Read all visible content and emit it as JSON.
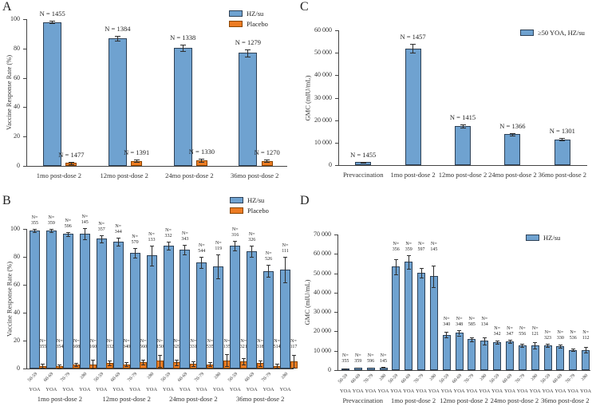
{
  "figure_bg": "#ffffff",
  "colors": {
    "hzsu": "#6FA2D0",
    "hzsu_border": "#2E4156",
    "placebo": "#EC7C23",
    "placebo_border": "#8A4500",
    "error_bar": "#2f2f2f",
    "text": "#1c1c1c"
  },
  "chart_data": [
    {
      "panel": "A",
      "type": "bar",
      "kind": "pairs",
      "ylabel": "Vaccine Response Rate (%)",
      "ylim": [
        0,
        100
      ],
      "ytick_labels": [
        "0",
        "20",
        "40",
        "60",
        "80",
        "100"
      ],
      "legend": [
        {
          "label": "HZ/su",
          "series": "hzsu"
        },
        {
          "label": "Placebo",
          "series": "placebo"
        }
      ],
      "groups": [
        {
          "label": "1mo post-dose 2",
          "bars": [
            {
              "series": "hzsu",
              "value": 98,
              "err": 0.8,
              "n": "N = 1455"
            },
            {
              "series": "placebo",
              "value": 2,
              "err": 0.8,
              "n": "N = 1477"
            }
          ]
        },
        {
          "label": "12mo post-dose 2",
          "bars": [
            {
              "series": "hzsu",
              "value": 87,
              "err": 1.5,
              "n": "N = 1384"
            },
            {
              "series": "placebo",
              "value": 3.5,
              "err": 1.0,
              "n": "N = 1391"
            }
          ]
        },
        {
          "label": "24mo post-dose 2",
          "bars": [
            {
              "series": "hzsu",
              "value": 80.5,
              "err": 2.0,
              "n": "N = 1338"
            },
            {
              "series": "placebo",
              "value": 4,
              "err": 1.1,
              "n": "N = 1330"
            }
          ]
        },
        {
          "label": "36mo post-dose 2",
          "bars": [
            {
              "series": "hzsu",
              "value": 77,
              "err": 2.3,
              "n": "N = 1279"
            },
            {
              "series": "placebo",
              "value": 3.5,
              "err": 1.0,
              "n": "N = 1270"
            }
          ]
        }
      ]
    },
    {
      "panel": "B",
      "type": "bar",
      "kind": "bins2",
      "ylabel": "Vaccine Response Rate (%)",
      "ylim": [
        0,
        100
      ],
      "ytick_labels": [
        "0",
        "20",
        "40",
        "60",
        "80",
        "100"
      ],
      "yoa_label": "YOA",
      "age_labels": [
        "50-59",
        "60-69",
        "70-79",
        "≥80"
      ],
      "legend": [
        {
          "label": "HZ/su",
          "series": "hzsu"
        },
        {
          "label": "Placebo",
          "series": "placebo"
        }
      ],
      "groups": [
        {
          "label": "1mo post-dose 2",
          "bins": [
            {
              "age": "50-59",
              "hzsu": {
                "value": 99,
                "err": 1.0,
                "n": "355"
              },
              "placebo": {
                "value": 2,
                "err": 1.5,
                "n": "355"
              }
            },
            {
              "age": "60-69",
              "hzsu": {
                "value": 99,
                "err": 1.0,
                "n": "359"
              },
              "placebo": {
                "value": 1.5,
                "err": 1.2,
                "n": "354"
              }
            },
            {
              "age": "70-79",
              "hzsu": {
                "value": 96.5,
                "err": 1.5,
                "n": "596"
              },
              "placebo": {
                "value": 3,
                "err": 1.3,
                "n": "608"
              }
            },
            {
              "age": "≥80",
              "hzsu": {
                "value": 96.5,
                "err": 4.0,
                "n": "145"
              },
              "placebo": {
                "value": 3,
                "err": 3.5,
                "n": "160"
              }
            }
          ]
        },
        {
          "label": "12mo post-dose 2",
          "bins": [
            {
              "age": "50-59",
              "hzsu": {
                "value": 93,
                "err": 2.5,
                "n": "357"
              },
              "placebo": {
                "value": 4,
                "err": 1.8,
                "n": "332"
              }
            },
            {
              "age": "60-69",
              "hzsu": {
                "value": 91,
                "err": 3.0,
                "n": "344"
              },
              "placebo": {
                "value": 3,
                "err": 1.5,
                "n": "340"
              }
            },
            {
              "age": "70-79",
              "hzsu": {
                "value": 83,
                "err": 3.5,
                "n": "570"
              },
              "placebo": {
                "value": 4.5,
                "err": 1.6,
                "n": "560"
              }
            },
            {
              "age": "≥80",
              "hzsu": {
                "value": 81,
                "err": 7.0,
                "n": "133"
              },
              "placebo": {
                "value": 5.5,
                "err": 4.5,
                "n": "150"
              }
            }
          ]
        },
        {
          "label": "24mo post-dose 2",
          "bins": [
            {
              "age": "50-59",
              "hzsu": {
                "value": 88,
                "err": 3.0,
                "n": "332"
              },
              "placebo": {
                "value": 4.5,
                "err": 2.0,
                "n": "329"
              }
            },
            {
              "age": "60-69",
              "hzsu": {
                "value": 85,
                "err": 3.5,
                "n": "343"
              },
              "placebo": {
                "value": 3.5,
                "err": 1.7,
                "n": "331"
              }
            },
            {
              "age": "70-79",
              "hzsu": {
                "value": 76,
                "err": 4.0,
                "n": "544"
              },
              "placebo": {
                "value": 3,
                "err": 1.4,
                "n": "535"
              }
            },
            {
              "age": "≥80",
              "hzsu": {
                "value": 73,
                "err": 8.5,
                "n": "119"
              },
              "placebo": {
                "value": 6,
                "err": 4.5,
                "n": "135"
              }
            }
          ]
        },
        {
          "label": "36mo post-dose 2",
          "bins": [
            {
              "age": "50-59",
              "hzsu": {
                "value": 88,
                "err": 3.5,
                "n": "316"
              },
              "placebo": {
                "value": 5,
                "err": 2.2,
                "n": "321"
              }
            },
            {
              "age": "60-69",
              "hzsu": {
                "value": 84,
                "err": 4.0,
                "n": "326"
              },
              "placebo": {
                "value": 4,
                "err": 2.0,
                "n": "318"
              }
            },
            {
              "age": "70-79",
              "hzsu": {
                "value": 70,
                "err": 4.5,
                "n": "526"
              },
              "placebo": {
                "value": 2,
                "err": 1.3,
                "n": "514"
              }
            },
            {
              "age": "≥80",
              "hzsu": {
                "value": 71,
                "err": 9.0,
                "n": "111"
              },
              "placebo": {
                "value": 5,
                "err": 4.5,
                "n": "117"
              }
            }
          ]
        }
      ]
    },
    {
      "panel": "C",
      "type": "bar",
      "kind": "single",
      "ylabel": "GMC (mIU/mL)",
      "ylim": [
        0,
        60000
      ],
      "ytick_labels": [
        "0",
        "10 000",
        "20 000",
        "30 000",
        "40 000",
        "50 000",
        "60 000"
      ],
      "legend": [
        {
          "label": "≥50 YOA, HZ/su",
          "series": "hzsu"
        }
      ],
      "groups": [
        {
          "label": "Prevaccination",
          "bars": [
            {
              "series": "hzsu",
              "value": 1300,
              "err": 150,
              "n": "N = 1455"
            }
          ]
        },
        {
          "label": "1mo post-dose 2",
          "bars": [
            {
              "series": "hzsu",
              "value": 52000,
              "err": 1900,
              "n": "N = 1457"
            }
          ]
        },
        {
          "label": "12mo post-dose 2",
          "bars": [
            {
              "series": "hzsu",
              "value": 17300,
              "err": 650,
              "n": "N = 1415"
            }
          ]
        },
        {
          "label": "24mo post-dose 2",
          "bars": [
            {
              "series": "hzsu",
              "value": 13700,
              "err": 500,
              "n": "N = 1366"
            }
          ]
        },
        {
          "label": "36mo post-dose 2",
          "bars": [
            {
              "series": "hzsu",
              "value": 11500,
              "err": 420,
              "n": "N = 1301"
            }
          ]
        }
      ]
    },
    {
      "panel": "D",
      "type": "bar",
      "kind": "bins1",
      "ylabel": "GMC (mIU/mL)",
      "ylim": [
        0,
        70000
      ],
      "ytick_labels": [
        "0",
        "10 000",
        "20 000",
        "30 000",
        "40 000",
        "50 000",
        "60 000",
        "70 000"
      ],
      "yoa_label": "YOA",
      "age_labels": [
        "50-59",
        "60-69",
        "70-79",
        "≥80"
      ],
      "legend": [
        {
          "label": "HZ/su",
          "series": "hzsu"
        }
      ],
      "groups": [
        {
          "label": "Prevaccination",
          "bins": [
            {
              "age": "50-59",
              "hzsu": {
                "value": 900,
                "err": 120,
                "n": "355"
              }
            },
            {
              "age": "60-69",
              "hzsu": {
                "value": 1200,
                "err": 140,
                "n": "359"
              }
            },
            {
              "age": "70-79",
              "hzsu": {
                "value": 1300,
                "err": 160,
                "n": "596"
              }
            },
            {
              "age": "≥80",
              "hzsu": {
                "value": 1400,
                "err": 250,
                "n": "145"
              }
            }
          ]
        },
        {
          "label": "1mo post-dose 2",
          "bins": [
            {
              "age": "50-59",
              "hzsu": {
                "value": 53400,
                "err": 3900,
                "n": "356"
              }
            },
            {
              "age": "60-69",
              "hzsu": {
                "value": 56000,
                "err": 3500,
                "n": "359"
              }
            },
            {
              "age": "70-79",
              "hzsu": {
                "value": 50300,
                "err": 2500,
                "n": "597"
              }
            },
            {
              "age": "≥80",
              "hzsu": {
                "value": 48500,
                "err": 5600,
                "n": "145"
              }
            }
          ]
        },
        {
          "label": "12mo post-dose 2",
          "bins": [
            {
              "age": "50-59",
              "hzsu": {
                "value": 18300,
                "err": 1300,
                "n": "340"
              }
            },
            {
              "age": "60-69",
              "hzsu": {
                "value": 19300,
                "err": 1400,
                "n": "348"
              }
            },
            {
              "age": "70-79",
              "hzsu": {
                "value": 16000,
                "err": 1000,
                "n": "585"
              }
            },
            {
              "age": "≥80",
              "hzsu": {
                "value": 15200,
                "err": 1900,
                "n": "134"
              }
            }
          ]
        },
        {
          "label": "24mo post-dose 2",
          "bins": [
            {
              "age": "50-59",
              "hzsu": {
                "value": 14400,
                "err": 900,
                "n": "342"
              }
            },
            {
              "age": "60-69",
              "hzsu": {
                "value": 14900,
                "err": 800,
                "n": "347"
              }
            },
            {
              "age": "70-79",
              "hzsu": {
                "value": 12800,
                "err": 700,
                "n": "556"
              }
            },
            {
              "age": "≥80",
              "hzsu": {
                "value": 12900,
                "err": 1600,
                "n": "121"
              }
            }
          ]
        },
        {
          "label": "36mo post-dose 2",
          "bins": [
            {
              "age": "50-59",
              "hzsu": {
                "value": 12900,
                "err": 900,
                "n": "323"
              }
            },
            {
              "age": "60-69",
              "hzsu": {
                "value": 12400,
                "err": 800,
                "n": "330"
              }
            },
            {
              "age": "70-79",
              "hzsu": {
                "value": 10500,
                "err": 700,
                "n": "536"
              }
            },
            {
              "age": "≥80",
              "hzsu": {
                "value": 10500,
                "err": 1300,
                "n": "112"
              }
            }
          ]
        }
      ]
    }
  ]
}
